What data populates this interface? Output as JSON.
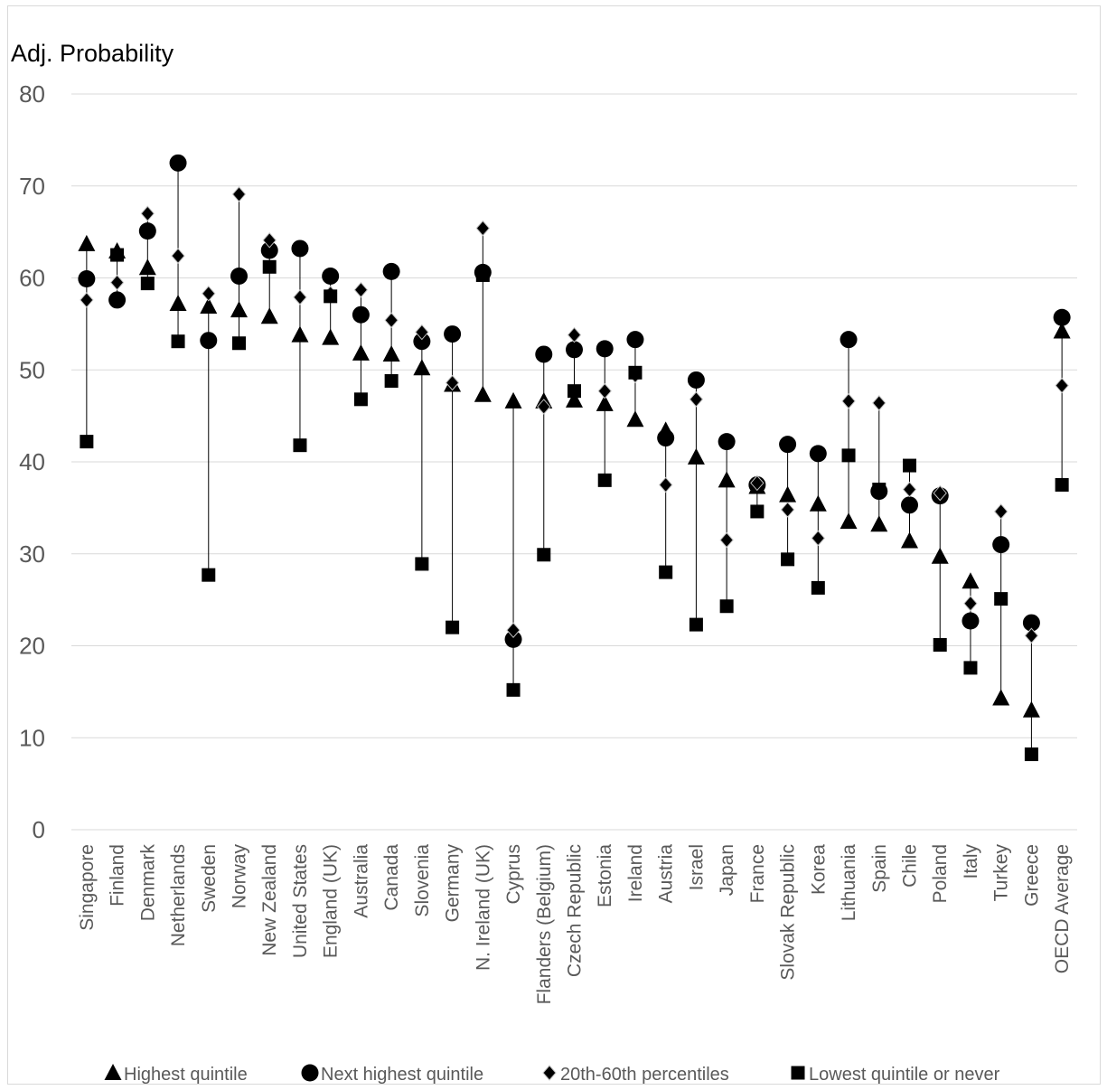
{
  "chart_data": {
    "type": "scatter",
    "title": "",
    "ylabel": "Adj. Probability",
    "xlabel": "",
    "ylim": [
      0,
      80
    ],
    "yticks": [
      0,
      10,
      20,
      30,
      40,
      50,
      60,
      70,
      80
    ],
    "grid": true,
    "legend_position": "bottom",
    "categories": [
      "Singapore",
      "Finland",
      "Denmark",
      "Netherlands",
      "Sweden",
      "Norway",
      "New Zealand",
      "United States",
      "England (UK)",
      "Australia",
      "Canada",
      "Slovenia",
      "Germany",
      "N. Ireland (UK)",
      "Cyprus",
      "Flanders (Belgium)",
      "Czech Republic",
      "Estonia",
      "Ireland",
      "Austria",
      "Israel",
      "Japan",
      "France",
      "Slovak Republic",
      "Korea",
      "Lithuania",
      "Spain",
      "Chile",
      "Poland",
      "Italy",
      "Turkey",
      "Greece",
      "OECD Average"
    ],
    "series": [
      {
        "name": "Highest quintile",
        "marker": "triangle",
        "color": "#000000",
        "values": [
          63.7,
          62.9,
          61.1,
          57.2,
          56.9,
          56.5,
          55.8,
          53.8,
          53.5,
          51.8,
          51.7,
          50.2,
          48.4,
          47.3,
          46.6,
          46.6,
          46.7,
          46.3,
          44.6,
          43.4,
          40.5,
          38.0,
          37.3,
          36.4,
          35.4,
          33.5,
          33.2,
          31.4,
          29.7,
          27.0,
          14.3,
          13.0,
          54.2
        ]
      },
      {
        "name": "Next highest quintile",
        "marker": "circle",
        "color": "#000000",
        "values": [
          59.9,
          57.6,
          65.1,
          72.5,
          53.2,
          60.2,
          63.0,
          63.2,
          60.2,
          56.0,
          60.7,
          53.1,
          53.9,
          60.6,
          20.7,
          51.7,
          52.2,
          52.3,
          53.3,
          42.6,
          48.9,
          42.2,
          37.5,
          41.9,
          40.9,
          53.3,
          36.8,
          35.3,
          36.3,
          22.7,
          31.0,
          22.5,
          55.7
        ]
      },
      {
        "name": "20th-60th percentiles",
        "marker": "diamond",
        "color": "#000000",
        "values": [
          57.6,
          59.5,
          67.0,
          62.4,
          58.3,
          69.1,
          64.1,
          57.9,
          58.3,
          58.7,
          55.4,
          54.1,
          48.6,
          65.4,
          21.7,
          46.0,
          53.8,
          47.7,
          49.4,
          37.5,
          46.8,
          31.5,
          37.7,
          34.8,
          31.7,
          46.6,
          46.4,
          37.0,
          36.6,
          24.6,
          34.6,
          21.1,
          48.3
        ]
      },
      {
        "name": "Lowest quintile or never",
        "marker": "square",
        "color": "#000000",
        "values": [
          42.2,
          62.5,
          59.4,
          53.1,
          27.7,
          52.9,
          61.2,
          41.8,
          58.0,
          46.8,
          48.8,
          28.9,
          22.0,
          60.3,
          15.2,
          29.9,
          47.7,
          38.0,
          49.7,
          28.0,
          22.3,
          24.3,
          34.6,
          29.4,
          26.3,
          40.7,
          37.0,
          39.6,
          20.1,
          17.6,
          25.1,
          8.2,
          37.5
        ]
      }
    ]
  }
}
